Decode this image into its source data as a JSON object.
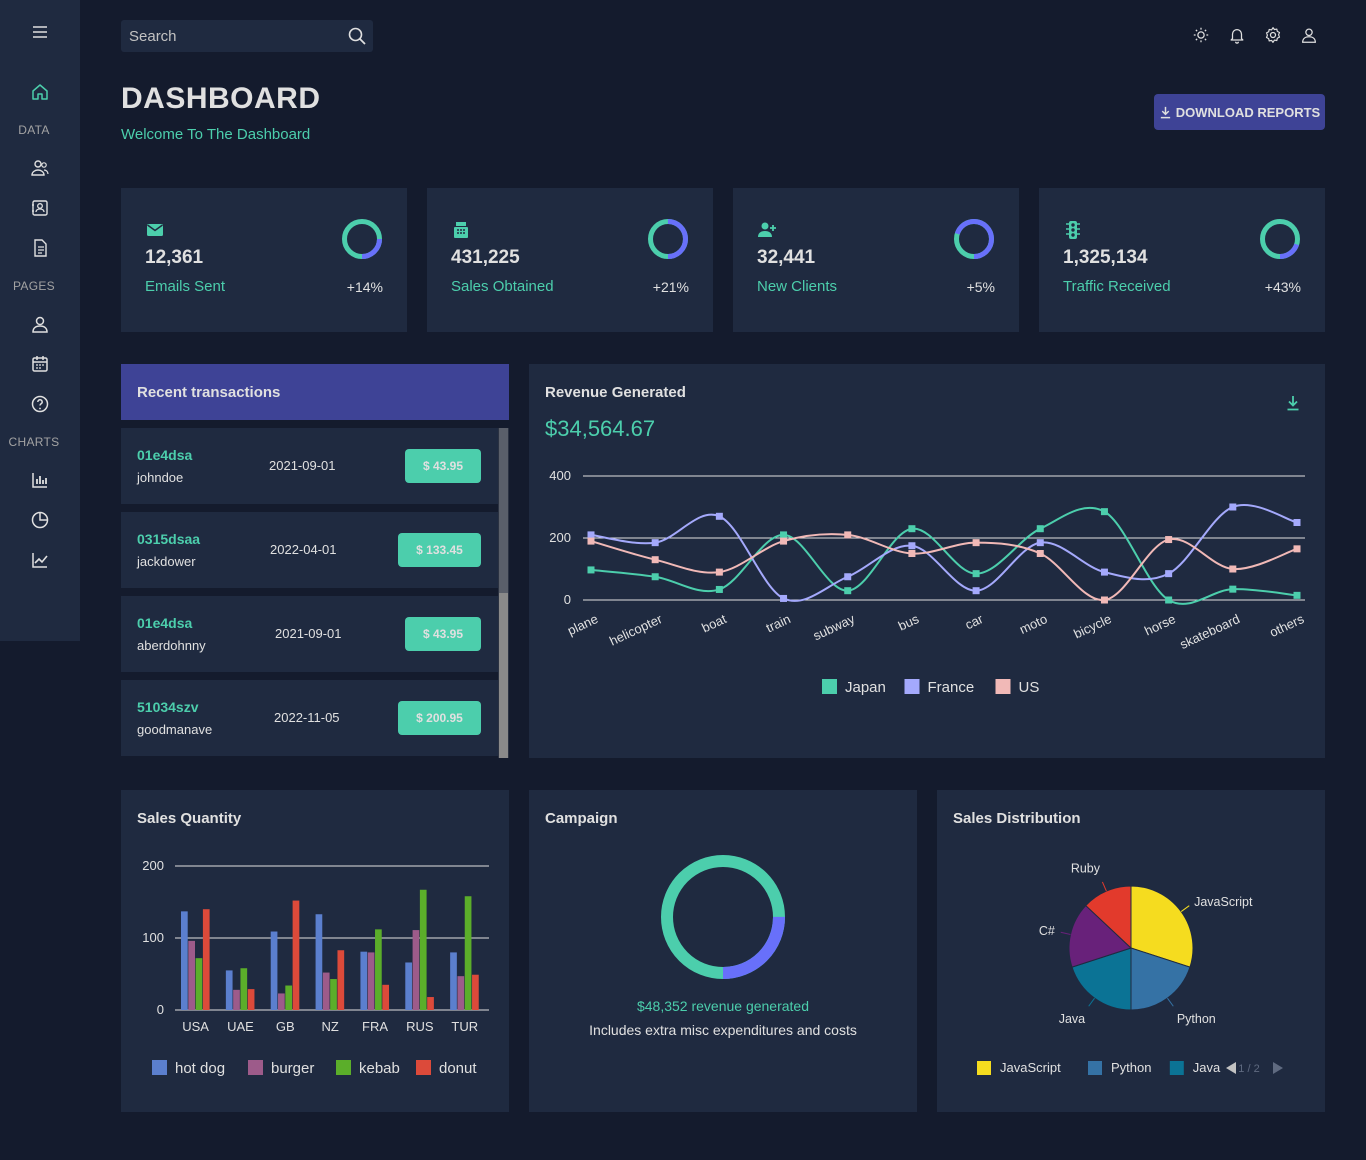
{
  "search": {
    "placeholder": "Search"
  },
  "sidebar": {
    "sections": [
      "DATA",
      "PAGES",
      "CHARTS"
    ],
    "items": [
      {
        "name": "home-icon"
      },
      {
        "name": "team-icon"
      },
      {
        "name": "contacts-icon"
      },
      {
        "name": "invoices-icon"
      },
      {
        "name": "profile-icon"
      },
      {
        "name": "calendar-icon"
      },
      {
        "name": "faq-icon"
      },
      {
        "name": "bar-chart-icon"
      },
      {
        "name": "pie-chart-icon"
      },
      {
        "name": "line-chart-icon"
      }
    ]
  },
  "header": {
    "title": "DASHBOARD",
    "subtitle": "Welcome To The Dashboard",
    "download_label": "DOWNLOAD REPORTS"
  },
  "stats": [
    {
      "value": "12,361",
      "label": "Emails Sent",
      "change": "+14%",
      "icon": "email-icon",
      "progress": 0.75
    },
    {
      "value": "431,225",
      "label": "Sales Obtained",
      "change": "+21%",
      "icon": "point-of-sale-icon",
      "progress": 0.5
    },
    {
      "value": "32,441",
      "label": "New Clients",
      "change": "+5%",
      "icon": "person-add-icon",
      "progress": 0.3
    },
    {
      "value": "1,325,134",
      "label": "Traffic Received",
      "change": "+43%",
      "icon": "traffic-icon",
      "progress": 0.8
    }
  ],
  "transactions": {
    "title": "Recent transactions",
    "rows": [
      {
        "txId": "01e4dsa",
        "user": "johndoe",
        "date": "2021-09-01",
        "cost": "$ 43.95"
      },
      {
        "txId": "0315dsaa",
        "user": "jackdower",
        "date": "2022-04-01",
        "cost": "$ 133.45"
      },
      {
        "txId": "01e4dsa",
        "user": "aberdohnny",
        "date": "2021-09-01",
        "cost": "$ 43.95"
      },
      {
        "txId": "51034szv",
        "user": "goodmanave",
        "date": "2022-11-05",
        "cost": "$ 200.95"
      }
    ]
  },
  "revenue": {
    "title": "Revenue Generated",
    "total": "$34,564.67"
  },
  "campaign": {
    "title": "Campaign",
    "revenue_text": "$48,352 revenue generated",
    "note": "Includes extra misc expenditures and costs",
    "progress": 0.75
  },
  "chart_data": [
    {
      "type": "line",
      "title": "Revenue Generated",
      "categories": [
        "plane",
        "helicopter",
        "boat",
        "train",
        "subway",
        "bus",
        "car",
        "moto",
        "bicycle",
        "horse",
        "skateboard",
        "others"
      ],
      "yticks": [
        0,
        200,
        400
      ],
      "ylim": [
        0,
        400
      ],
      "legend": "bottom",
      "series": [
        {
          "name": "Japan",
          "color": "#4cceac",
          "values": [
            97,
            75,
            34,
            210,
            30,
            230,
            85,
            230,
            285,
            0,
            35,
            15
          ]
        },
        {
          "name": "France",
          "color": "#a4a9fc",
          "values": [
            210,
            185,
            270,
            5,
            75,
            175,
            30,
            185,
            90,
            85,
            300,
            250
          ]
        },
        {
          "name": "US",
          "color": "#f1b9b7",
          "values": [
            190,
            130,
            90,
            190,
            210,
            150,
            185,
            150,
            0,
            195,
            100,
            165
          ]
        }
      ]
    },
    {
      "type": "bar",
      "title": "Sales Quantity",
      "categories": [
        "USA",
        "UAE",
        "GB",
        "NZ",
        "FRA",
        "RUS",
        "TUR"
      ],
      "yticks": [
        0,
        100,
        200
      ],
      "ylim": [
        0,
        200
      ],
      "legend": "bottom",
      "series": [
        {
          "name": "hot dog",
          "color": "#5b7fce",
          "values": [
            137,
            55,
            109,
            133,
            81,
            66,
            80
          ]
        },
        {
          "name": "burger",
          "color": "#9d5b8a",
          "values": [
            96,
            28,
            23,
            52,
            80,
            111,
            47
          ]
        },
        {
          "name": "kebab",
          "color": "#5bae2a",
          "values": [
            72,
            58,
            34,
            43,
            112,
            167,
            158
          ]
        },
        {
          "name": "donut",
          "color": "#dc4a3a",
          "values": [
            140,
            29,
            152,
            83,
            35,
            18,
            49
          ]
        }
      ]
    },
    {
      "type": "pie",
      "title": "Sales Distribution",
      "legend": "bottom",
      "legend_page": "1 / 2",
      "labels": [
        "JavaScript",
        "Python",
        "Java",
        "C#",
        "Ruby"
      ],
      "colors": [
        "#f5dc1f",
        "#3572a5",
        "#0b7395",
        "#68217a",
        "#e23a2c"
      ],
      "values": [
        30,
        20,
        20,
        17,
        13
      ]
    }
  ]
}
